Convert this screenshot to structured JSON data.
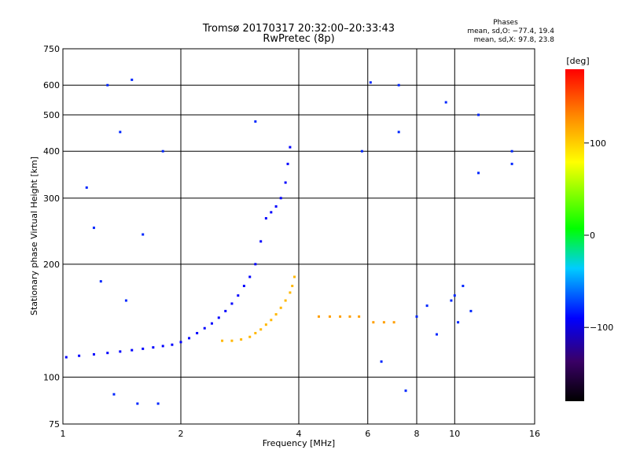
{
  "chart_data": {
    "type": "scatter",
    "title_line1": "Tromsø 20170317 20:32:00–20:33:43",
    "title_line2": "RwPretec (8p)",
    "phases_heading": "Phases",
    "phases_o": "mean, sd,O: −77.4, 19.4",
    "phases_x": "mean, sd,X:  97.8, 23.8",
    "xlabel": "Frequency [MHz]",
    "ylabel": "Stationary phase Virtual Height [km]",
    "x_scale": "log",
    "y_scale": "log",
    "xlim": [
      1,
      16
    ],
    "ylim": [
      75,
      750
    ],
    "x_ticks": [
      1,
      2,
      4,
      6,
      8,
      10,
      16
    ],
    "x_tick_labels": [
      "1",
      "2",
      "4",
      "6",
      "8",
      "10",
      "16"
    ],
    "y_ticks": [
      75,
      100,
      200,
      300,
      400,
      500,
      600,
      750
    ],
    "y_tick_labels": [
      "75",
      "100",
      "200",
      "300",
      "400",
      "500",
      "600",
      "750"
    ],
    "grid": true,
    "colorbar": {
      "label": "[deg]",
      "range": [
        -180,
        180
      ],
      "ticks": [
        100,
        0,
        -100
      ],
      "tick_labels": [
        "100",
        "0",
        "−100"
      ]
    },
    "traces": [
      {
        "name": "O-mode trace (blue)",
        "phase": -90,
        "points": [
          [
            1.02,
            113
          ],
          [
            1.1,
            114
          ],
          [
            1.2,
            115
          ],
          [
            1.3,
            116
          ],
          [
            1.4,
            117
          ],
          [
            1.5,
            118
          ],
          [
            1.6,
            119
          ],
          [
            1.7,
            120
          ],
          [
            1.8,
            121
          ],
          [
            1.9,
            122
          ],
          [
            2.0,
            124
          ],
          [
            2.1,
            127
          ],
          [
            2.2,
            131
          ],
          [
            2.3,
            135
          ],
          [
            2.4,
            139
          ],
          [
            2.5,
            144
          ],
          [
            2.6,
            150
          ],
          [
            2.7,
            157
          ],
          [
            2.8,
            165
          ],
          [
            2.9,
            175
          ],
          [
            3.0,
            185
          ],
          [
            3.1,
            200
          ],
          [
            3.2,
            230
          ],
          [
            3.3,
            265
          ],
          [
            3.4,
            275
          ],
          [
            3.5,
            285
          ],
          [
            3.6,
            300
          ],
          [
            3.7,
            330
          ],
          [
            3.75,
            370
          ],
          [
            3.8,
            410
          ]
        ]
      },
      {
        "name": "X-mode trace (orange)",
        "phase": 110,
        "points": [
          [
            2.55,
            125
          ],
          [
            2.7,
            125
          ],
          [
            2.85,
            126
          ],
          [
            3.0,
            128
          ],
          [
            3.1,
            131
          ],
          [
            3.2,
            134
          ],
          [
            3.3,
            138
          ],
          [
            3.4,
            142
          ],
          [
            3.5,
            147
          ],
          [
            3.6,
            153
          ],
          [
            3.7,
            160
          ],
          [
            3.8,
            168
          ],
          [
            3.85,
            175
          ],
          [
            3.9,
            185
          ]
        ]
      },
      {
        "name": "Es layer (yellow)",
        "phase": 120,
        "points": [
          [
            4.5,
            145
          ],
          [
            4.8,
            145
          ],
          [
            5.1,
            145
          ],
          [
            5.4,
            145
          ],
          [
            5.7,
            145
          ],
          [
            6.2,
            140
          ],
          [
            6.6,
            140
          ],
          [
            7.0,
            140
          ]
        ]
      },
      {
        "name": "Scattered points (mixed)",
        "phase": -80,
        "points": [
          [
            1.3,
            600
          ],
          [
            1.5,
            620
          ],
          [
            1.4,
            450
          ],
          [
            1.2,
            250
          ],
          [
            1.6,
            240
          ],
          [
            1.8,
            400
          ],
          [
            3.1,
            480
          ],
          [
            5.8,
            400
          ],
          [
            6.1,
            610
          ],
          [
            7.2,
            450
          ],
          [
            7.2,
            600
          ],
          [
            9.5,
            540
          ],
          [
            11.5,
            500
          ],
          [
            11.5,
            350
          ],
          [
            14.0,
            400
          ],
          [
            14.0,
            370
          ],
          [
            1.15,
            320
          ],
          [
            1.25,
            180
          ],
          [
            1.45,
            160
          ],
          [
            1.35,
            90
          ],
          [
            1.55,
            85
          ],
          [
            1.75,
            85
          ],
          [
            6.5,
            110
          ],
          [
            7.5,
            92
          ],
          [
            8.5,
            155
          ],
          [
            9.0,
            130
          ],
          [
            10.0,
            165
          ],
          [
            10.5,
            175
          ],
          [
            11.0,
            150
          ],
          [
            8.0,
            145
          ],
          [
            9.8,
            160
          ],
          [
            10.2,
            140
          ]
        ]
      }
    ]
  }
}
